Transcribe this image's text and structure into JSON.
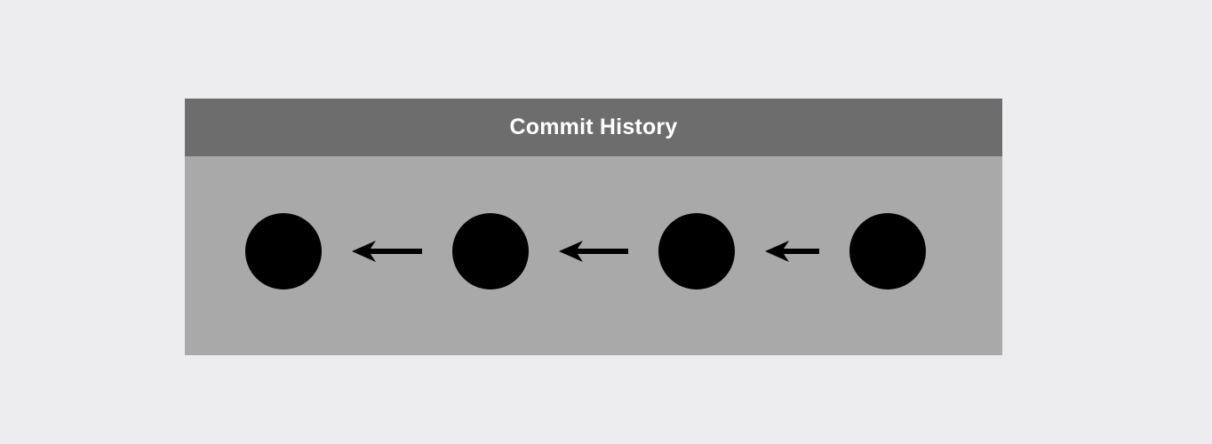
{
  "diagram": {
    "title": "Commit History",
    "commits": [
      {
        "id": "commit-1"
      },
      {
        "id": "commit-2"
      },
      {
        "id": "commit-3"
      },
      {
        "id": "commit-4"
      }
    ],
    "edges": [
      {
        "from": "commit-2",
        "to": "commit-1"
      },
      {
        "from": "commit-3",
        "to": "commit-2"
      },
      {
        "from": "commit-4",
        "to": "commit-3"
      }
    ],
    "colors": {
      "background": "#ededef",
      "header": "#6d6d6d",
      "body": "#a9a9a9",
      "node": "#000000",
      "title_text": "#ffffff"
    }
  }
}
